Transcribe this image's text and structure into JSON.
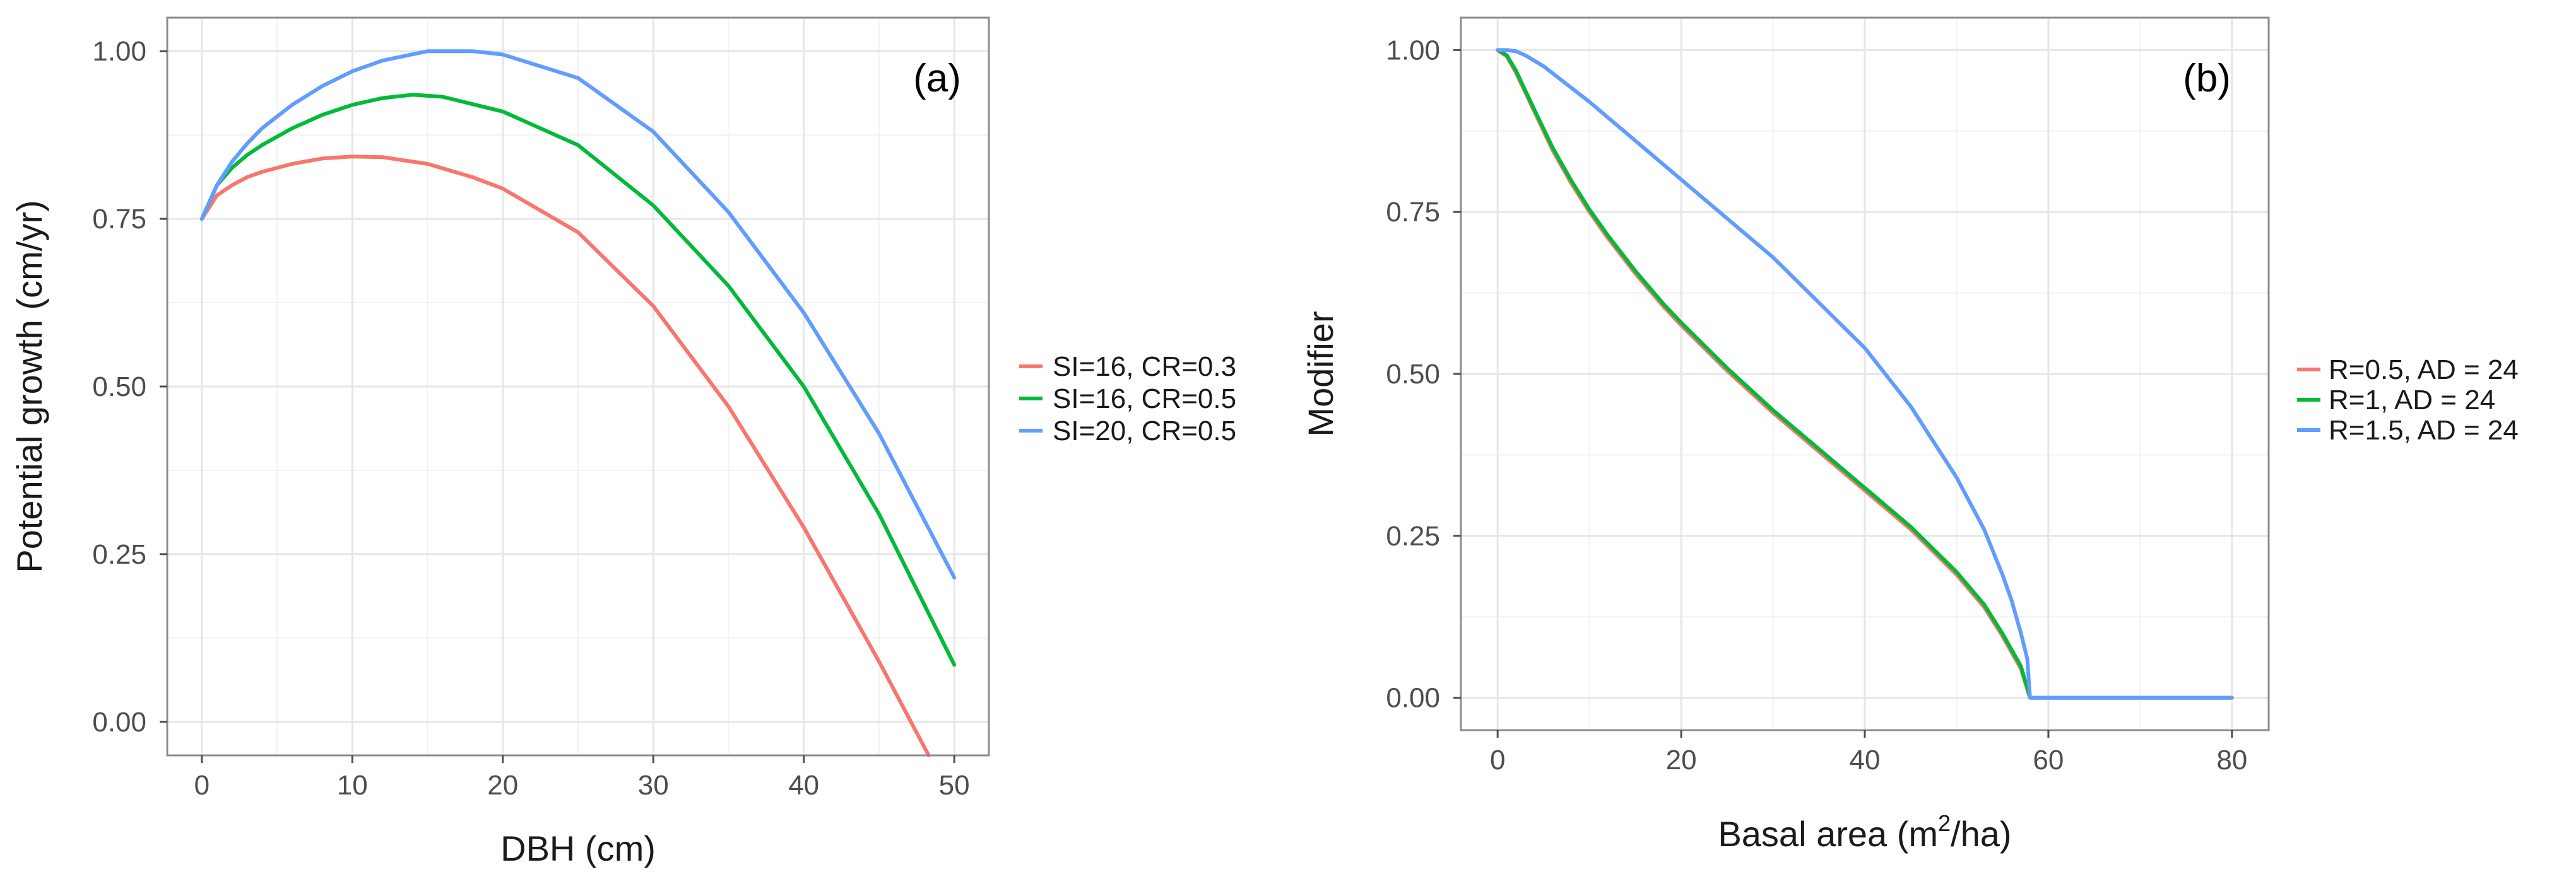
{
  "chart_data": [
    {
      "type": "line",
      "panel_label": "(a)",
      "xlabel": "DBH (cm)",
      "ylabel": "Potential growth (cm/yr)",
      "xlim": [
        -2.3,
        52.3
      ],
      "ylim": [
        -0.05,
        1.05
      ],
      "xticks": [
        0,
        10,
        20,
        30,
        40,
        50
      ],
      "xtick_labels": [
        "0",
        "10",
        "20",
        "30",
        "40",
        "50"
      ],
      "yticks": [
        0,
        0.25,
        0.5,
        0.75,
        1.0
      ],
      "ytick_labels": [
        "0.00",
        "0.25",
        "0.50",
        "0.75",
        "1.00"
      ],
      "grid": true,
      "legend_position": "right",
      "series": [
        {
          "name": "SI=16, CR=0.3",
          "color": "#F8766D",
          "x": [
            0,
            1,
            2,
            3,
            4,
            6,
            8,
            10,
            12,
            15,
            18,
            20,
            25,
            30,
            35,
            40,
            45,
            48.3
          ],
          "y": [
            0.75,
            0.785,
            0.8,
            0.812,
            0.82,
            0.832,
            0.84,
            0.843,
            0.842,
            0.832,
            0.812,
            0.795,
            0.73,
            0.62,
            0.47,
            0.29,
            0.09,
            -0.05
          ]
        },
        {
          "name": "SI=16, CR=0.5",
          "color": "#00BA38",
          "x": [
            0,
            1,
            2,
            3,
            4,
            6,
            8,
            10,
            12,
            14,
            16,
            20,
            25,
            30,
            35,
            40,
            45,
            50
          ],
          "y": [
            0.75,
            0.8,
            0.826,
            0.845,
            0.86,
            0.885,
            0.905,
            0.92,
            0.93,
            0.935,
            0.932,
            0.91,
            0.86,
            0.77,
            0.65,
            0.5,
            0.31,
            0.085
          ]
        },
        {
          "name": "SI=20, CR=0.5",
          "color": "#619CFF",
          "x": [
            0,
            1,
            2,
            3,
            4,
            6,
            8,
            10,
            12,
            15,
            18,
            20,
            25,
            30,
            35,
            40,
            45,
            50
          ],
          "y": [
            0.75,
            0.8,
            0.835,
            0.862,
            0.885,
            0.92,
            0.948,
            0.97,
            0.986,
            1.0,
            1.0,
            0.995,
            0.96,
            0.88,
            0.76,
            0.61,
            0.43,
            0.215
          ]
        }
      ]
    },
    {
      "type": "line",
      "panel_label": "(b)",
      "xlabel": "Basal area (m2/ha)",
      "xlabel_text": "Basal area (m",
      "xlabel_sup": "2",
      "xlabel_tail": "/ha)",
      "ylabel": "Modifier",
      "xlim": [
        -4,
        84
      ],
      "ylim": [
        -0.05,
        1.05
      ],
      "xticks": [
        0,
        20,
        40,
        60,
        80
      ],
      "xtick_labels": [
        "0",
        "20",
        "40",
        "60",
        "80"
      ],
      "yticks": [
        0,
        0.25,
        0.5,
        0.75,
        1.0
      ],
      "ytick_labels": [
        "0.00",
        "0.25",
        "0.50",
        "0.75",
        "1.00"
      ],
      "grid": true,
      "legend_position": "right",
      "series": [
        {
          "name": "R=0.5, AD = 24",
          "color": "#F8766D",
          "x": [
            0,
            1,
            2,
            3,
            4,
            6,
            8,
            10,
            12,
            15,
            18,
            20,
            25,
            30,
            35,
            40,
            45,
            50,
            53,
            55,
            56,
            57,
            58,
            60,
            70,
            80
          ],
          "y": [
            1.0,
            0.99,
            0.965,
            0.935,
            0.905,
            0.845,
            0.795,
            0.75,
            0.71,
            0.655,
            0.605,
            0.575,
            0.505,
            0.44,
            0.38,
            0.32,
            0.26,
            0.19,
            0.14,
            0.095,
            0.07,
            0.045,
            0.0,
            0.0,
            0.0,
            0.0
          ]
        },
        {
          "name": "R=1, AD = 24",
          "color": "#00BA38",
          "x": [
            0,
            1,
            2,
            3,
            4,
            6,
            8,
            10,
            12,
            15,
            18,
            20,
            25,
            30,
            35,
            40,
            45,
            50,
            53,
            55,
            56,
            57,
            58,
            60,
            70,
            80
          ],
          "y": [
            1.0,
            0.992,
            0.968,
            0.938,
            0.908,
            0.849,
            0.799,
            0.754,
            0.714,
            0.659,
            0.609,
            0.579,
            0.509,
            0.444,
            0.384,
            0.324,
            0.264,
            0.194,
            0.144,
            0.099,
            0.074,
            0.049,
            0.0,
            0.0,
            0.0,
            0.0
          ]
        },
        {
          "name": "R=1.5, AD = 24",
          "color": "#619CFF",
          "x": [
            0,
            1,
            2,
            3,
            5,
            10,
            15,
            20,
            25,
            30,
            35,
            40,
            45,
            50,
            53,
            55,
            56,
            57,
            57.7,
            58,
            60,
            70,
            80
          ],
          "y": [
            1.0,
            1.0,
            0.998,
            0.992,
            0.975,
            0.92,
            0.86,
            0.8,
            0.74,
            0.68,
            0.61,
            0.54,
            0.45,
            0.34,
            0.26,
            0.19,
            0.15,
            0.1,
            0.06,
            0.0,
            0.0,
            0.0,
            0.0
          ]
        }
      ]
    }
  ]
}
